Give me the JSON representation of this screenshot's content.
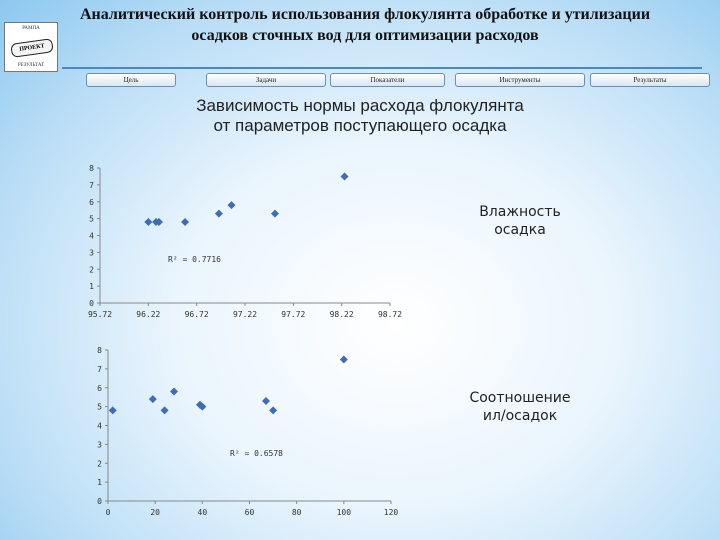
{
  "header": {
    "title_line1": "Аналитический контроль использования флокулянта обработке и утилизации",
    "title_line2": "осадков сточных вод для оптимизации расходов"
  },
  "logo": {
    "top_text": "РАМПА",
    "badge_text": "ПРОЕКТ",
    "bottom_text": "РЕЗУЛЬТАТ"
  },
  "nav": {
    "items": [
      {
        "label": "Цель"
      },
      {
        "label": "Задачи"
      },
      {
        "label": "Показатели"
      },
      {
        "label": "Инструменты"
      },
      {
        "label": "Результаты"
      }
    ]
  },
  "chart_title_line1": "Зависимость нормы расхода флокулянта",
  "chart_title_line2": "от параметров поступающего осадка",
  "colors": {
    "marker": "#3f6db3",
    "axis": "#888888"
  },
  "chart_data": [
    {
      "type": "scatter",
      "series_label_line1": "Влажность",
      "series_label_line2": "осадка",
      "r2_label": "R² = 0.7716",
      "xlim": [
        95.72,
        98.72
      ],
      "ylim": [
        0,
        8
      ],
      "xticks": [
        "95.72",
        "96.22",
        "96.72",
        "97.22",
        "97.72",
        "98.22",
        "98.72"
      ],
      "yticks": [
        "0",
        "1",
        "2",
        "3",
        "4",
        "5",
        "6",
        "7",
        "8"
      ],
      "points": [
        {
          "x": 96.22,
          "y": 4.8
        },
        {
          "x": 96.3,
          "y": 4.8
        },
        {
          "x": 96.33,
          "y": 4.8
        },
        {
          "x": 96.6,
          "y": 4.8
        },
        {
          "x": 96.95,
          "y": 5.3
        },
        {
          "x": 97.08,
          "y": 5.8
        },
        {
          "x": 97.53,
          "y": 5.3
        },
        {
          "x": 98.25,
          "y": 7.5
        }
      ]
    },
    {
      "type": "scatter",
      "series_label_line1": "Соотношение",
      "series_label_line2": "ил/осадок",
      "r2_label": "R² = 0.6578",
      "xlim": [
        0,
        120
      ],
      "ylim": [
        0,
        8
      ],
      "xticks": [
        "0",
        "20",
        "40",
        "60",
        "80",
        "100",
        "120"
      ],
      "yticks": [
        "0",
        "1",
        "2",
        "3",
        "4",
        "5",
        "6",
        "7",
        "8"
      ],
      "points": [
        {
          "x": 2,
          "y": 4.8
        },
        {
          "x": 19,
          "y": 5.4
        },
        {
          "x": 24,
          "y": 4.8
        },
        {
          "x": 28,
          "y": 5.8
        },
        {
          "x": 39,
          "y": 5.1
        },
        {
          "x": 40,
          "y": 5.0
        },
        {
          "x": 67,
          "y": 5.3
        },
        {
          "x": 70,
          "y": 4.8
        },
        {
          "x": 100,
          "y": 7.5
        }
      ]
    }
  ]
}
